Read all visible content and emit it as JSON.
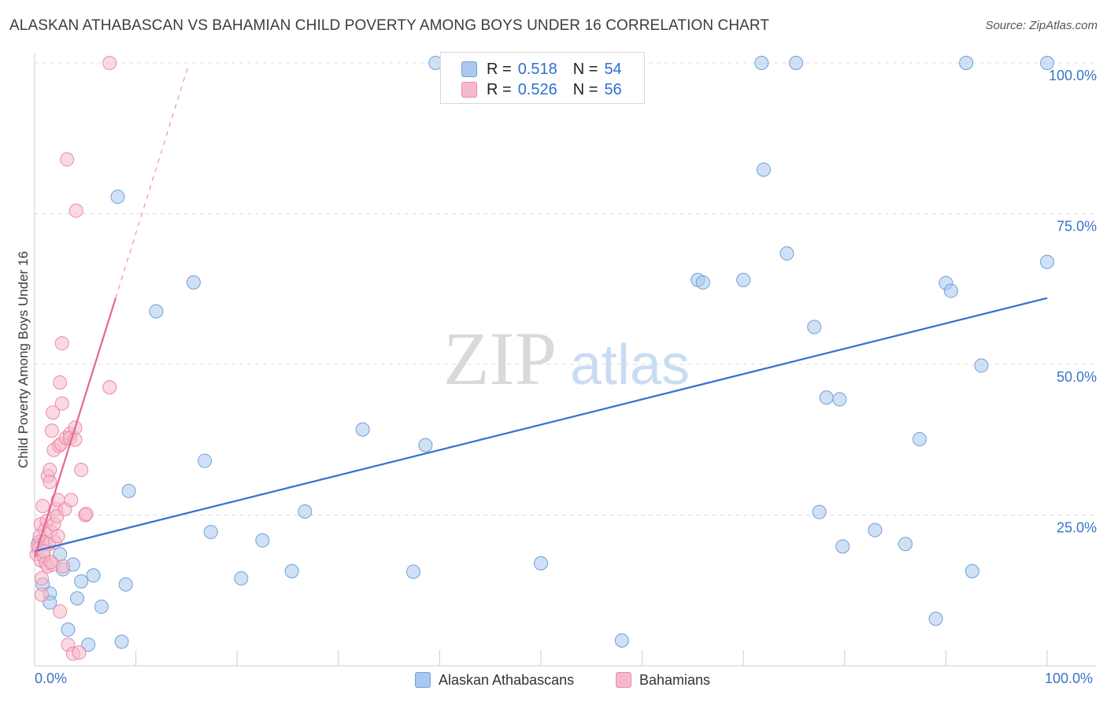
{
  "header": {
    "title": "ALASKAN ATHABASCAN VS BAHAMIAN CHILD POVERTY AMONG BOYS UNDER 16 CORRELATION CHART",
    "source": "Source: ZipAtlas.com"
  },
  "watermark": {
    "zip": "ZIP",
    "atlas": "atlas"
  },
  "legend": {
    "rows": [
      {
        "r_label": "R =",
        "r_value": "0.518",
        "n_label": "N =",
        "n_value": "54"
      },
      {
        "r_label": "R =",
        "r_value": "0.526",
        "n_label": "N =",
        "n_value": "56"
      }
    ]
  },
  "colors": {
    "blue_fill": "#aac8ef",
    "blue_stroke": "#6f9fd8",
    "blue_line": "#2f73d2",
    "pink_fill": "#f6b9cb",
    "pink_stroke": "#e88aa7",
    "pink_line": "#e8648f",
    "tick_text": "#3a74c8",
    "grid": "#dcdcdc"
  },
  "chart_data": {
    "type": "scatter",
    "title": "ALASKAN ATHABASCAN VS BAHAMIAN CHILD POVERTY AMONG BOYS UNDER 16 CORRELATION CHART",
    "xlabel": "",
    "ylabel": "Child Poverty Among Boys Under 16",
    "xlim": [
      0,
      100
    ],
    "ylim": [
      0,
      100
    ],
    "x_tick_labels": [
      "0.0%",
      "100.0%"
    ],
    "y_ticks": [
      25,
      50,
      75,
      100
    ],
    "y_tick_labels": [
      "25.0%",
      "50.0%",
      "75.0%",
      "100.0%"
    ],
    "legend_position": "bottom-center",
    "series": [
      {
        "name": "Alaskan Athabascans",
        "r": 0.518,
        "n": 54,
        "trend": {
          "x": [
            0,
            100
          ],
          "y": [
            19.0,
            61.0
          ],
          "dashed_x": []
        },
        "points": [
          [
            0.8,
            13.5
          ],
          [
            1.5,
            12.0
          ],
          [
            1.5,
            10.5
          ],
          [
            2.5,
            18.5
          ],
          [
            2.8,
            16.0
          ],
          [
            3.3,
            6.0
          ],
          [
            3.8,
            16.8
          ],
          [
            4.2,
            11.2
          ],
          [
            4.6,
            14.0
          ],
          [
            5.3,
            3.5
          ],
          [
            5.8,
            15.0
          ],
          [
            6.6,
            9.8
          ],
          [
            8.2,
            77.8
          ],
          [
            8.6,
            4.0
          ],
          [
            9.0,
            13.5
          ],
          [
            9.3,
            29.0
          ],
          [
            12.0,
            58.8
          ],
          [
            15.7,
            63.6
          ],
          [
            16.8,
            34.0
          ],
          [
            17.4,
            22.2
          ],
          [
            20.4,
            14.5
          ],
          [
            22.5,
            20.8
          ],
          [
            25.4,
            15.7
          ],
          [
            26.7,
            25.6
          ],
          [
            32.4,
            39.2
          ],
          [
            37.4,
            15.6
          ],
          [
            38.6,
            36.6
          ],
          [
            39.6,
            100.0
          ],
          [
            50.0,
            17.0
          ],
          [
            58.0,
            4.2
          ],
          [
            65.5,
            64.0
          ],
          [
            66.0,
            63.6
          ],
          [
            70.0,
            64.0
          ],
          [
            71.8,
            100.0
          ],
          [
            72.0,
            82.3
          ],
          [
            74.3,
            68.4
          ],
          [
            75.2,
            100.0
          ],
          [
            77.0,
            56.2
          ],
          [
            77.5,
            25.5
          ],
          [
            78.2,
            44.5
          ],
          [
            79.5,
            44.2
          ],
          [
            79.8,
            19.8
          ],
          [
            83.0,
            22.5
          ],
          [
            86.0,
            20.2
          ],
          [
            87.4,
            37.6
          ],
          [
            89.0,
            7.8
          ],
          [
            90.0,
            63.5
          ],
          [
            90.5,
            62.2
          ],
          [
            92.0,
            100.0
          ],
          [
            92.6,
            15.7
          ],
          [
            93.5,
            49.8
          ],
          [
            100.0,
            67.0
          ],
          [
            100.0,
            100.0
          ],
          [
            0.4,
            20.5
          ]
        ]
      },
      {
        "name": "Bahamians",
        "r": 0.526,
        "n": 56,
        "trend": {
          "x": [
            0,
            8.0
          ],
          "y": [
            18.0,
            61.0
          ],
          "dashed_x": [
            8.0,
            15.2
          ]
        },
        "points": [
          [
            0.2,
            18.5
          ],
          [
            0.3,
            20.0
          ],
          [
            0.4,
            19.5
          ],
          [
            0.5,
            21.5
          ],
          [
            0.6,
            17.5
          ],
          [
            0.6,
            23.5
          ],
          [
            0.7,
            11.8
          ],
          [
            0.7,
            14.5
          ],
          [
            0.8,
            26.5
          ],
          [
            0.9,
            18.2
          ],
          [
            1.0,
            22.5
          ],
          [
            1.0,
            20.5
          ],
          [
            1.1,
            17.0
          ],
          [
            1.2,
            24.0
          ],
          [
            1.3,
            16.5
          ],
          [
            1.3,
            31.5
          ],
          [
            1.4,
            20.2
          ],
          [
            1.5,
            32.5
          ],
          [
            1.5,
            30.5
          ],
          [
            1.6,
            22.3
          ],
          [
            1.7,
            39.0
          ],
          [
            1.8,
            42.0
          ],
          [
            1.8,
            16.8
          ],
          [
            1.9,
            35.8
          ],
          [
            1.9,
            23.5
          ],
          [
            2.0,
            20.5
          ],
          [
            2.1,
            26.0
          ],
          [
            2.2,
            24.8
          ],
          [
            2.3,
            27.5
          ],
          [
            2.3,
            21.5
          ],
          [
            2.4,
            36.5
          ],
          [
            2.5,
            47.0
          ],
          [
            2.5,
            9.0
          ],
          [
            2.6,
            36.8
          ],
          [
            2.7,
            43.5
          ],
          [
            2.7,
            53.5
          ],
          [
            2.8,
            16.5
          ],
          [
            3.0,
            26.0
          ],
          [
            3.1,
            37.8
          ],
          [
            3.2,
            84.0
          ],
          [
            3.3,
            3.5
          ],
          [
            3.5,
            38.5
          ],
          [
            3.5,
            37.8
          ],
          [
            3.6,
            27.5
          ],
          [
            3.8,
            2.0
          ],
          [
            4.0,
            39.5
          ],
          [
            4.0,
            37.5
          ],
          [
            4.1,
            75.5
          ],
          [
            4.4,
            2.2
          ],
          [
            4.6,
            32.5
          ],
          [
            5.0,
            25.0
          ],
          [
            5.1,
            25.2
          ],
          [
            7.4,
            46.2
          ],
          [
            7.4,
            100.0
          ],
          [
            0.9,
            19.0
          ],
          [
            1.6,
            17.2
          ]
        ]
      }
    ]
  }
}
